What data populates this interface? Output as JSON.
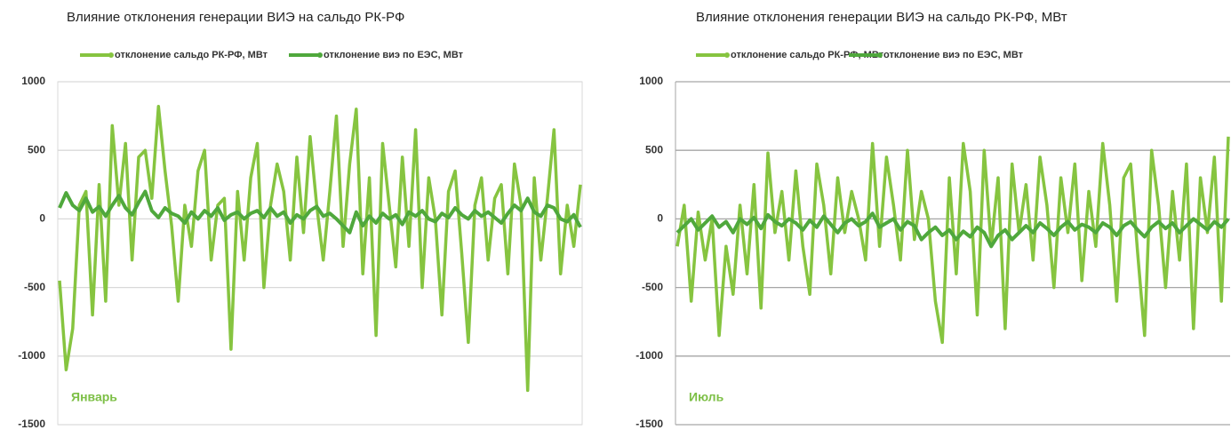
{
  "chart_data": [
    {
      "type": "line",
      "title": "Влияние отклонения генерации ВИЭ на сальдо РК-РФ",
      "annotation": "Январь",
      "ylim": [
        -1500,
        1000
      ],
      "yticks": [
        -1500,
        -1000,
        -500,
        0,
        500,
        1000
      ],
      "grid": true,
      "grid_color": "#d9d9d9",
      "legend": "top",
      "series": [
        {
          "name": "отклонение сальдо РК-РФ, МВт",
          "color": "#86c440",
          "values": [
            -450,
            -1100,
            -800,
            100,
            200,
            -700,
            250,
            -600,
            680,
            100,
            550,
            -300,
            450,
            500,
            150,
            820,
            350,
            -50,
            -600,
            100,
            -200,
            350,
            500,
            -300,
            100,
            150,
            -950,
            200,
            -300,
            300,
            550,
            -500,
            100,
            400,
            200,
            -300,
            450,
            -100,
            600,
            100,
            -300,
            200,
            750,
            -200,
            400,
            800,
            -400,
            300,
            -850,
            550,
            100,
            -350,
            450,
            -200,
            650,
            -500,
            300,
            0,
            -700,
            200,
            350,
            -250,
            -900,
            100,
            300,
            -300,
            150,
            250,
            -400,
            400,
            100,
            -1250,
            300,
            -300,
            150,
            650,
            -400,
            100,
            -200,
            250
          ]
        },
        {
          "name": "отклонение виэ по ЕЭС, МВт",
          "color": "#4fa83c",
          "values": [
            80,
            190,
            100,
            60,
            150,
            50,
            90,
            20,
            100,
            170,
            80,
            30,
            120,
            200,
            60,
            10,
            80,
            40,
            20,
            -30,
            50,
            0,
            60,
            20,
            80,
            -10,
            30,
            50,
            0,
            40,
            60,
            10,
            80,
            20,
            50,
            -30,
            30,
            0,
            60,
            90,
            20,
            40,
            0,
            -50,
            -100,
            50,
            -50,
            20,
            -30,
            40,
            0,
            30,
            -40,
            50,
            20,
            60,
            0,
            -20,
            40,
            10,
            80,
            30,
            0,
            60,
            20,
            50,
            10,
            -30,
            40,
            100,
            60,
            150,
            50,
            20,
            100,
            80,
            0,
            -20,
            30,
            -60
          ]
        }
      ]
    },
    {
      "type": "line",
      "title": "Влияние отклонения генерации ВИЭ на сальдо РК-РФ, МВт",
      "annotation": "Июль",
      "ylim": [
        -1500,
        1000
      ],
      "yticks": [
        -1500,
        -1000,
        -500,
        0,
        500,
        1000
      ],
      "grid": true,
      "grid_color": "#a6a6a6",
      "legend": "top",
      "series": [
        {
          "name": "отклонение сальдо РК-РФ, МВт",
          "color": "#86c440",
          "values": [
            -200,
            100,
            -600,
            50,
            -300,
            0,
            -850,
            -200,
            -550,
            100,
            -400,
            250,
            -650,
            480,
            -100,
            200,
            -300,
            350,
            -200,
            -550,
            400,
            100,
            -400,
            300,
            -100,
            200,
            0,
            -300,
            550,
            -200,
            450,
            100,
            -300,
            500,
            -150,
            200,
            0,
            -600,
            -900,
            300,
            -400,
            550,
            200,
            -700,
            500,
            -200,
            300,
            -800,
            400,
            -100,
            250,
            -300,
            450,
            100,
            -500,
            300,
            -100,
            400,
            -450,
            200,
            -200,
            550,
            100,
            -600,
            300,
            400,
            -250,
            -850,
            500,
            100,
            -500,
            200,
            -300,
            400,
            -800,
            300,
            -100,
            450,
            -600,
            600
          ]
        },
        {
          "name": "отклонение виэ по ЕЭС, МВт",
          "color": "#4fa83c",
          "values": [
            -100,
            -50,
            0,
            -80,
            -30,
            20,
            -60,
            -20,
            -100,
            0,
            -40,
            10,
            -70,
            30,
            -20,
            -50,
            0,
            -30,
            -80,
            -10,
            -60,
            20,
            -40,
            -100,
            -30,
            0,
            -50,
            -20,
            40,
            -60,
            -30,
            0,
            -80,
            -20,
            -50,
            -150,
            -100,
            -60,
            -120,
            -80,
            -150,
            -90,
            -130,
            -60,
            -100,
            -200,
            -120,
            -80,
            -150,
            -100,
            -50,
            -100,
            -30,
            -70,
            -120,
            -60,
            -20,
            -80,
            -40,
            -60,
            -100,
            -30,
            -60,
            -120,
            -50,
            -20,
            -80,
            -130,
            -60,
            -20,
            -70,
            -30,
            -100,
            -50,
            0,
            -40,
            -80,
            -20,
            -60,
            0
          ]
        }
      ]
    }
  ]
}
